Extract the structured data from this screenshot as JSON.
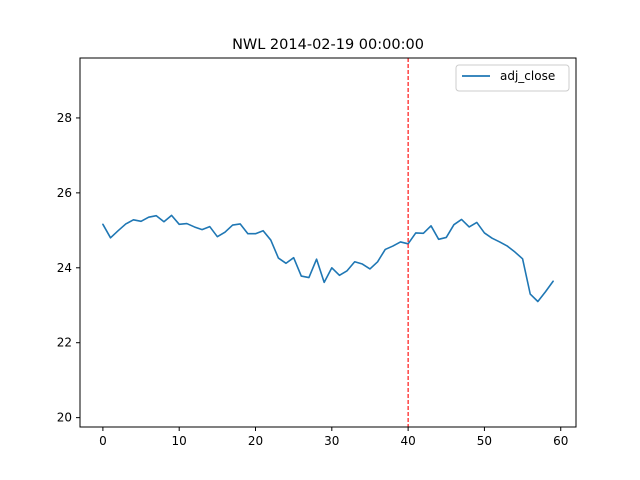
{
  "chart_data": {
    "type": "line",
    "title": "NWL 2014-02-19 00:00:00",
    "xlabel": "",
    "ylabel": "",
    "xlim": [
      -3,
      62
    ],
    "ylim": [
      19.75,
      29.6
    ],
    "x_ticks": [
      0,
      10,
      20,
      30,
      40,
      50,
      60
    ],
    "x_tick_labels": [
      "0",
      "10",
      "20",
      "30",
      "40",
      "50",
      "60"
    ],
    "y_ticks": [
      20,
      22,
      24,
      26,
      28
    ],
    "y_tick_labels": [
      "20",
      "22",
      "24",
      "26",
      "28"
    ],
    "grid": false,
    "legend_position": "top-right",
    "series": [
      {
        "name": "adj_close",
        "color": "#1f77b4",
        "x": [
          0,
          1,
          2,
          3,
          4,
          5,
          6,
          7,
          8,
          9,
          10,
          11,
          12,
          13,
          14,
          15,
          16,
          17,
          18,
          19,
          20,
          21,
          22,
          23,
          24,
          25,
          26,
          27,
          28,
          29,
          30,
          31,
          32,
          33,
          34,
          35,
          36,
          37,
          38,
          39,
          40,
          41,
          42,
          43,
          44,
          45,
          46,
          47,
          48,
          49,
          50,
          51,
          52,
          53,
          54,
          55,
          56,
          57,
          58,
          59
        ],
        "values": [
          25.16,
          24.8,
          24.99,
          25.17,
          25.28,
          25.24,
          25.35,
          25.39,
          25.23,
          25.4,
          25.16,
          25.18,
          25.09,
          25.02,
          25.1,
          24.83,
          24.95,
          25.14,
          25.17,
          24.91,
          24.91,
          24.99,
          24.74,
          24.26,
          24.12,
          24.27,
          23.78,
          23.74,
          24.23,
          23.61,
          24.0,
          23.8,
          23.92,
          24.16,
          24.1,
          23.97,
          24.16,
          24.49,
          24.58,
          24.69,
          24.64,
          24.93,
          24.92,
          25.12,
          24.76,
          24.81,
          25.15,
          25.29,
          25.09,
          25.21,
          24.93,
          24.79,
          24.69,
          24.58,
          24.42,
          24.24,
          23.3,
          23.1,
          23.36,
          23.64
        ]
      }
    ],
    "annotations": [
      {
        "type": "vline",
        "x": 40,
        "color": "#ff0000",
        "style": "dashed"
      }
    ]
  }
}
